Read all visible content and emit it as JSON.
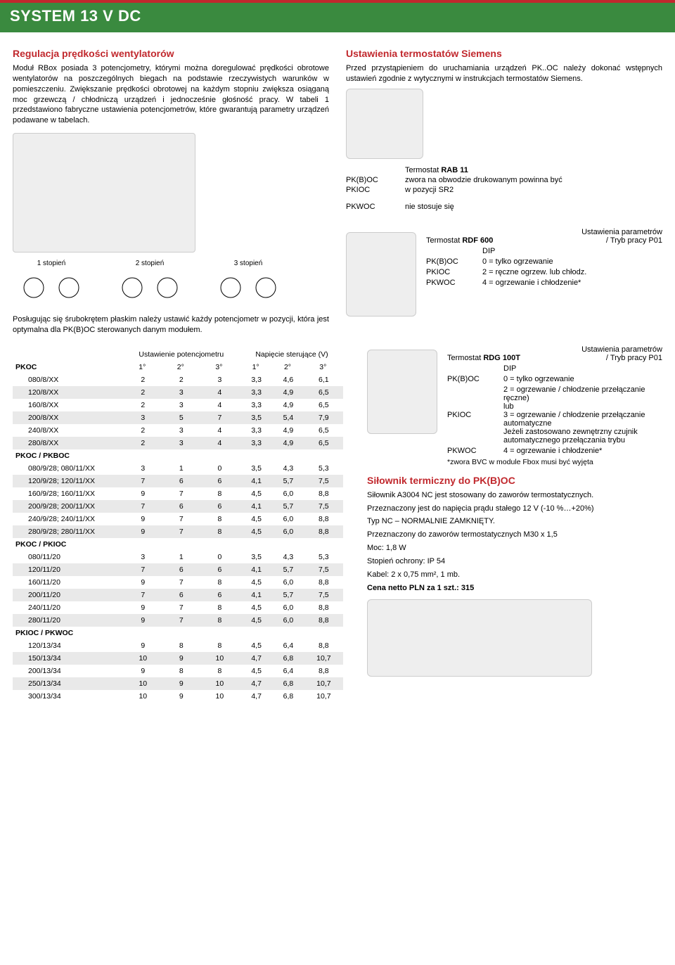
{
  "header": {
    "title": "SYSTEM 13 V DC"
  },
  "left": {
    "title1": "Regulacja prędkości wentylatorów",
    "para1": "Moduł RBox posiada 3 potencjometry, którymi można doregulować prędkości obrotowe wentylatorów na poszczególnych biegach na podstawie rzeczywistych warunków w pomieszczeniu. Zwiększanie prędkości obrotowej na każdym stopniu zwiększa osiąganą moc grzewczą / chłodniczą urządzeń i jednocześnie głośność pracy. W tabeli 1 przedstawiono fabryczne ustawienia potencjometrów, które gwarantują parametry urządzeń podawane w tabelach.",
    "dials": [
      "1 stopień",
      "2 stopień",
      "3 stopień"
    ],
    "para2": "Posługując się śrubokrętem płaskim należy ustawić każdy potencjometr w pozycji, która jest optymalna dla PK(B)OC sterowanych danym modułem."
  },
  "right": {
    "title1": "Ustawienia termostatów Siemens",
    "para1": "Przed przystąpieniem do uruchamiania urządzeń PK..OC należy dokonać wstępnych ustawień zgodnie z wytycznymi w instrukcjach termostatów Siemens.",
    "rab11": {
      "name_prefix": "Termostat ",
      "name_bold": "RAB 11",
      "rows": [
        {
          "k": "PK(B)OC",
          "v": "zwora na obwodzie drukowanym powinna być"
        },
        {
          "k": "PKIOC",
          "v": "w pozycji SR2"
        },
        {
          "k": "PKWOC",
          "v": "nie stosuje się"
        }
      ]
    },
    "rdf600": {
      "name_prefix": "Termostat ",
      "name_bold": "RDF 600",
      "header_right1": "Ustawienia parametrów",
      "header_right2": "/ Tryb pracy P01",
      "dip": "DIP",
      "rows": [
        {
          "k": "PK(B)OC",
          "v": "0 = tylko ogrzewanie"
        },
        {
          "k": "PKIOC",
          "v": "2 = ręczne ogrzew. lub chłodz."
        },
        {
          "k": "PKWOC",
          "v": "4 = ogrzewanie i chłodzenie*"
        }
      ]
    },
    "rdg100t": {
      "name_prefix": "Termostat ",
      "name_bold": "RDG 100T",
      "header_right1": "Ustawienia parametrów",
      "header_right2": "/ Tryb pracy P01",
      "dip": "DIP",
      "rows": [
        {
          "k": "PK(B)OC",
          "v": "0 = tylko ogrzewanie"
        },
        {
          "k": "PKIOC",
          "v": "2 = ogrzewanie / chłodzenie przełączanie ręczne)\nlub\n3 = ogrzewanie / chłodzenie przełączanie automatyczne\nJeżeli zastosowano zewnętrzny czujnik automatycznego przełączania trybu"
        },
        {
          "k": "PKWOC",
          "v": "4 = ogrzewanie i chłodzenie*"
        }
      ],
      "note": "*zwora BVC w module Fbox musi być wyjęta"
    },
    "servo": {
      "title": "Siłownik termiczny do PK(B)OC",
      "p1": "Siłownik A3004 NC jest stosowany do zaworów termostatycznych.",
      "p2": "Przeznaczony jest do napięcia prądu stałego 12 V (-10 %…+20%)",
      "p3": "Typ NC – NORMALNIE ZAMKNIĘTY.",
      "p4": "Przeznaczony do zaworów termostatycznych M30 x 1,5",
      "p5": "Moc: 1,8 W",
      "p6": "Stopień ochrony: IP 54",
      "p7": "Kabel: 2 x 0,75 mm², 1 mb.",
      "price": "Cena netto PLN za 1 szt.: 315"
    }
  },
  "table": {
    "head1": "Ustawienie potencjometru",
    "head2": "Napięcie sterujące (V)",
    "cols_deg": [
      "1°",
      "2°",
      "3°",
      "1°",
      "2°",
      "3°"
    ],
    "groups": [
      {
        "name": "PKOC",
        "rows": [
          [
            "080/8/XX",
            "2",
            "2",
            "3",
            "3,3",
            "4,6",
            "6,1"
          ],
          [
            "120/8/XX",
            "2",
            "3",
            "4",
            "3,3",
            "4,9",
            "6,5"
          ],
          [
            "160/8/XX",
            "2",
            "3",
            "4",
            "3,3",
            "4,9",
            "6,5"
          ],
          [
            "200/8/XX",
            "3",
            "5",
            "7",
            "3,5",
            "5,4",
            "7,9"
          ],
          [
            "240/8/XX",
            "2",
            "3",
            "4",
            "3,3",
            "4,9",
            "6,5"
          ],
          [
            "280/8/XX",
            "2",
            "3",
            "4",
            "3,3",
            "4,9",
            "6,5"
          ]
        ]
      },
      {
        "name": "PKOC / PKBOC",
        "rows": [
          [
            "080/9/28; 080/11/XX",
            "3",
            "1",
            "0",
            "3,5",
            "4,3",
            "5,3"
          ],
          [
            "120/9/28; 120/11/XX",
            "7",
            "6",
            "6",
            "4,1",
            "5,7",
            "7,5"
          ],
          [
            "160/9/28; 160/11/XX",
            "9",
            "7",
            "8",
            "4,5",
            "6,0",
            "8,8"
          ],
          [
            "200/9/28; 200/11/XX",
            "7",
            "6",
            "6",
            "4,1",
            "5,7",
            "7,5"
          ],
          [
            "240/9/28; 240/11/XX",
            "9",
            "7",
            "8",
            "4,5",
            "6,0",
            "8,8"
          ],
          [
            "280/9/28; 280/11/XX",
            "9",
            "7",
            "8",
            "4,5",
            "6,0",
            "8,8"
          ]
        ]
      },
      {
        "name": "PKOC / PKIOC",
        "rows": [
          [
            "080/11/20",
            "3",
            "1",
            "0",
            "3,5",
            "4,3",
            "5,3"
          ],
          [
            "120/11/20",
            "7",
            "6",
            "6",
            "4,1",
            "5,7",
            "7,5"
          ],
          [
            "160/11/20",
            "9",
            "7",
            "8",
            "4,5",
            "6,0",
            "8,8"
          ],
          [
            "200/11/20",
            "7",
            "6",
            "6",
            "4,1",
            "5,7",
            "7,5"
          ],
          [
            "240/11/20",
            "9",
            "7",
            "8",
            "4,5",
            "6,0",
            "8,8"
          ],
          [
            "280/11/20",
            "9",
            "7",
            "8",
            "4,5",
            "6,0",
            "8,8"
          ]
        ]
      },
      {
        "name": "PKIOC / PKWOC",
        "rows": [
          [
            "120/13/34",
            "9",
            "8",
            "8",
            "4,5",
            "6,4",
            "8,8"
          ],
          [
            "150/13/34",
            "10",
            "9",
            "10",
            "4,7",
            "6,8",
            "10,7"
          ],
          [
            "200/13/34",
            "9",
            "8",
            "8",
            "4,5",
            "6,4",
            "8,8"
          ],
          [
            "250/13/34",
            "10",
            "9",
            "10",
            "4,7",
            "6,8",
            "10,7"
          ],
          [
            "300/13/34",
            "10",
            "9",
            "10",
            "4,7",
            "6,8",
            "10,7"
          ]
        ]
      }
    ]
  },
  "colors": {
    "accent": "#c1282d",
    "header_bg": "#3a8a3f",
    "grey": "#e9e9e9"
  }
}
